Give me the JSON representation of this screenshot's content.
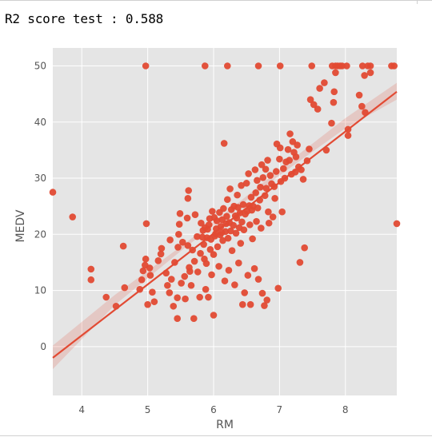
{
  "output": {
    "score_text": "R2 score test : 0.588"
  },
  "chart_data": {
    "type": "scatter",
    "title": "",
    "xlabel": "RM",
    "ylabel": "MEDV",
    "xlim": [
      3.56,
      8.78
    ],
    "ylim": [
      -8.7,
      53.2
    ],
    "xticks": [
      4,
      5,
      6,
      7,
      8
    ],
    "yticks": [
      0,
      10,
      20,
      30,
      40,
      50
    ],
    "grid": true,
    "legend": "none",
    "marker_color": "#e24a33",
    "background_color": "#e5e5e5",
    "regression_line": {
      "x": [
        3.56,
        8.78
      ],
      "y": [
        -2.0,
        45.4
      ]
    },
    "confidence_band": {
      "x": [
        3.56,
        4.5,
        5.5,
        6.3,
        7.0,
        8.0,
        8.78
      ],
      "lower": [
        -4.0,
        7.4,
        17.0,
        24.3,
        30.5,
        38.9,
        44.0
      ],
      "upper": [
        0.2,
        9.2,
        17.8,
        24.9,
        31.6,
        40.7,
        47.0
      ]
    },
    "points": [
      [
        4.97,
        50
      ],
      [
        5.87,
        50
      ],
      [
        6.21,
        50
      ],
      [
        6.68,
        50
      ],
      [
        7.01,
        50
      ],
      [
        7.49,
        50
      ],
      [
        7.8,
        50
      ],
      [
        7.85,
        50
      ],
      [
        7.88,
        50
      ],
      [
        7.92,
        50
      ],
      [
        7.95,
        50
      ],
      [
        8.02,
        50
      ],
      [
        8.26,
        50
      ],
      [
        8.34,
        50
      ],
      [
        8.38,
        50
      ],
      [
        8.7,
        50
      ],
      [
        8.74,
        50
      ],
      [
        3.56,
        27.5
      ],
      [
        3.86,
        23.1
      ],
      [
        4.14,
        13.8
      ],
      [
        4.14,
        11.9
      ],
      [
        4.37,
        8.8
      ],
      [
        4.52,
        7.2
      ],
      [
        4.63,
        17.9
      ],
      [
        4.65,
        10.5
      ],
      [
        4.88,
        10.2
      ],
      [
        4.91,
        11.9
      ],
      [
        4.93,
        13.5
      ],
      [
        4.96,
        14.5
      ],
      [
        4.97,
        15.6
      ],
      [
        4.98,
        21.9
      ],
      [
        5.0,
        7.5
      ],
      [
        5.03,
        14.0
      ],
      [
        5.04,
        12.7
      ],
      [
        5.07,
        9.7
      ],
      [
        5.1,
        8.0
      ],
      [
        5.16,
        15.3
      ],
      [
        5.2,
        16.5
      ],
      [
        5.21,
        17.5
      ],
      [
        5.28,
        13.1
      ],
      [
        5.3,
        10.9
      ],
      [
        5.33,
        9.6
      ],
      [
        5.34,
        19.0
      ],
      [
        5.36,
        12.0
      ],
      [
        5.39,
        7.2
      ],
      [
        5.41,
        15.0
      ],
      [
        5.45,
        5.0
      ],
      [
        5.45,
        8.7
      ],
      [
        5.46,
        17.7
      ],
      [
        5.47,
        20.0
      ],
      [
        5.48,
        21.8
      ],
      [
        5.49,
        23.7
      ],
      [
        5.51,
        11.3
      ],
      [
        5.53,
        18.6
      ],
      [
        5.56,
        12.5
      ],
      [
        5.57,
        8.5
      ],
      [
        5.6,
        22.9
      ],
      [
        5.61,
        18.0
      ],
      [
        5.61,
        26.4
      ],
      [
        5.62,
        27.8
      ],
      [
        5.63,
        14.1
      ],
      [
        5.64,
        13.4
      ],
      [
        5.66,
        10.9
      ],
      [
        5.68,
        17.2
      ],
      [
        5.7,
        5.0
      ],
      [
        5.71,
        15.2
      ],
      [
        5.72,
        23.5
      ],
      [
        5.75,
        19.6
      ],
      [
        5.76,
        13.3
      ],
      [
        5.79,
        8.8
      ],
      [
        5.8,
        16.6
      ],
      [
        5.81,
        22.0
      ],
      [
        5.83,
        19.5
      ],
      [
        5.84,
        20.7
      ],
      [
        5.85,
        18.2
      ],
      [
        5.86,
        15.6
      ],
      [
        5.87,
        21.2
      ],
      [
        5.88,
        10.2
      ],
      [
        5.89,
        14.8
      ],
      [
        5.9,
        19.4
      ],
      [
        5.91,
        20.9
      ],
      [
        5.92,
        8.8
      ],
      [
        5.93,
        21.7
      ],
      [
        5.94,
        22.8
      ],
      [
        5.95,
        17.3
      ],
      [
        5.96,
        19.1
      ],
      [
        5.97,
        12.8
      ],
      [
        5.98,
        24.1
      ],
      [
        6.0,
        16.4
      ],
      [
        6.0,
        5.6
      ],
      [
        6.01,
        23.0
      ],
      [
        6.02,
        19.7
      ],
      [
        6.03,
        20.1
      ],
      [
        6.04,
        21.0
      ],
      [
        6.05,
        22.4
      ],
      [
        6.06,
        17.8
      ],
      [
        6.08,
        14.3
      ],
      [
        6.09,
        23.9
      ],
      [
        6.1,
        19.9
      ],
      [
        6.11,
        21.4
      ],
      [
        6.12,
        20.3
      ],
      [
        6.13,
        22.6
      ],
      [
        6.14,
        18.9
      ],
      [
        6.15,
        24.6
      ],
      [
        6.16,
        36.2
      ],
      [
        6.17,
        11.7
      ],
      [
        6.18,
        20.5
      ],
      [
        6.19,
        21.9
      ],
      [
        6.2,
        23.2
      ],
      [
        6.21,
        26.2
      ],
      [
        6.22,
        19.3
      ],
      [
        6.23,
        13.6
      ],
      [
        6.24,
        22.1
      ],
      [
        6.25,
        28.1
      ],
      [
        6.26,
        20.6
      ],
      [
        6.27,
        24.4
      ],
      [
        6.28,
        17.1
      ],
      [
        6.3,
        21.6
      ],
      [
        6.31,
        25.0
      ],
      [
        6.32,
        11.0
      ],
      [
        6.33,
        23.3
      ],
      [
        6.34,
        20.2
      ],
      [
        6.35,
        22.9
      ],
      [
        6.36,
        27.0
      ],
      [
        6.37,
        24.8
      ],
      [
        6.38,
        14.9
      ],
      [
        6.39,
        21.2
      ],
      [
        6.4,
        23.8
      ],
      [
        6.41,
        18.4
      ],
      [
        6.42,
        28.7
      ],
      [
        6.43,
        22.2
      ],
      [
        6.44,
        7.5
      ],
      [
        6.45,
        25.3
      ],
      [
        6.46,
        20.8
      ],
      [
        6.47,
        9.6
      ],
      [
        6.48,
        23.6
      ],
      [
        6.5,
        29.1
      ],
      [
        6.51,
        24.1
      ],
      [
        6.52,
        12.7
      ],
      [
        6.53,
        30.8
      ],
      [
        6.54,
        25.1
      ],
      [
        6.55,
        21.7
      ],
      [
        6.56,
        7.5
      ],
      [
        6.57,
        26.6
      ],
      [
        6.58,
        24.3
      ],
      [
        6.59,
        19.2
      ],
      [
        6.6,
        25.0
      ],
      [
        6.62,
        13.9
      ],
      [
        6.63,
        31.5
      ],
      [
        6.64,
        27.4
      ],
      [
        6.65,
        22.3
      ],
      [
        6.66,
        29.6
      ],
      [
        6.67,
        24.7
      ],
      [
        6.68,
        12.0
      ],
      [
        6.7,
        26.1
      ],
      [
        6.71,
        28.4
      ],
      [
        6.72,
        21.1
      ],
      [
        6.73,
        32.4
      ],
      [
        6.74,
        9.5
      ],
      [
        6.75,
        30.1
      ],
      [
        6.77,
        7.3
      ],
      [
        6.78,
        26.9
      ],
      [
        6.79,
        31.6
      ],
      [
        6.8,
        28.2
      ],
      [
        6.81,
        8.3
      ],
      [
        6.82,
        33.2
      ],
      [
        6.83,
        24.0
      ],
      [
        6.84,
        22.0
      ],
      [
        6.86,
        30.5
      ],
      [
        6.88,
        29.0
      ],
      [
        6.9,
        23.1
      ],
      [
        6.92,
        28.5
      ],
      [
        6.93,
        26.4
      ],
      [
        6.95,
        31.2
      ],
      [
        6.96,
        36.1
      ],
      [
        6.98,
        10.4
      ],
      [
        7.0,
        33.4
      ],
      [
        7.01,
        35.4
      ],
      [
        7.02,
        29.4
      ],
      [
        7.04,
        24.0
      ],
      [
        7.06,
        31.7
      ],
      [
        7.08,
        30.0
      ],
      [
        7.1,
        32.9
      ],
      [
        7.13,
        35.1
      ],
      [
        7.15,
        33.2
      ],
      [
        7.16,
        37.9
      ],
      [
        7.18,
        30.7
      ],
      [
        7.2,
        36.5
      ],
      [
        7.22,
        34.6
      ],
      [
        7.24,
        31.1
      ],
      [
        7.25,
        33.8
      ],
      [
        7.27,
        35.9
      ],
      [
        7.29,
        32.0
      ],
      [
        7.31,
        15.0
      ],
      [
        7.33,
        31.5
      ],
      [
        7.36,
        29.8
      ],
      [
        7.38,
        17.6
      ],
      [
        7.42,
        33.1
      ],
      [
        7.45,
        35.2
      ],
      [
        7.47,
        44.0
      ],
      [
        7.52,
        43.1
      ],
      [
        7.58,
        42.3
      ],
      [
        7.61,
        46.0
      ],
      [
        7.68,
        47.0
      ],
      [
        7.71,
        35.0
      ],
      [
        7.79,
        39.8
      ],
      [
        7.82,
        43.5
      ],
      [
        7.83,
        45.4
      ],
      [
        7.85,
        48.8
      ],
      [
        8.04,
        38.7
      ],
      [
        8.04,
        37.6
      ],
      [
        8.21,
        44.8
      ],
      [
        8.25,
        42.8
      ],
      [
        8.29,
        48.3
      ],
      [
        8.3,
        41.7
      ],
      [
        8.38,
        48.8
      ],
      [
        8.78,
        21.9
      ]
    ]
  }
}
